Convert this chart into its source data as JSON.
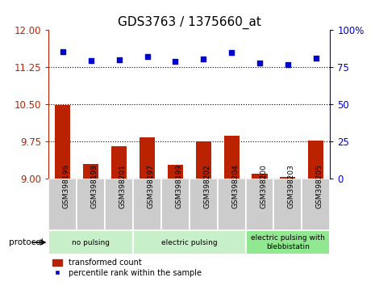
{
  "title": "GDS3763 / 1375660_at",
  "samples": [
    "GSM398196",
    "GSM398198",
    "GSM398201",
    "GSM398197",
    "GSM398199",
    "GSM398202",
    "GSM398204",
    "GSM398200",
    "GSM398203",
    "GSM398205"
  ],
  "red_values": [
    10.48,
    9.3,
    9.65,
    9.83,
    9.28,
    9.75,
    9.87,
    9.1,
    9.03,
    9.77
  ],
  "blue_values": [
    11.57,
    11.38,
    11.4,
    11.47,
    11.37,
    11.42,
    11.55,
    11.33,
    11.3,
    11.43
  ],
  "ylim_left": [
    9,
    12
  ],
  "ylim_right": [
    0,
    100
  ],
  "yticks_left": [
    9,
    9.75,
    10.5,
    11.25,
    12
  ],
  "yticks_right": [
    0,
    25,
    50,
    75,
    100
  ],
  "hlines": [
    9.75,
    10.5,
    11.25
  ],
  "groups": [
    {
      "label": "no pulsing",
      "start": 0,
      "end": 3,
      "color": "#c8f0c8"
    },
    {
      "label": "electric pulsing",
      "start": 3,
      "end": 7,
      "color": "#c8f0c8"
    },
    {
      "label": "electric pulsing with\nblebbistatin",
      "start": 7,
      "end": 10,
      "color": "#90e890"
    }
  ],
  "bar_color": "#bb2200",
  "dot_color": "#0000cc",
  "bar_width": 0.55,
  "legend_red": "transformed count",
  "legend_blue": "percentile rank within the sample",
  "protocol_label": "protocol",
  "title_fontsize": 11,
  "tick_fontsize": 8.5,
  "sample_fontsize": 6.5
}
